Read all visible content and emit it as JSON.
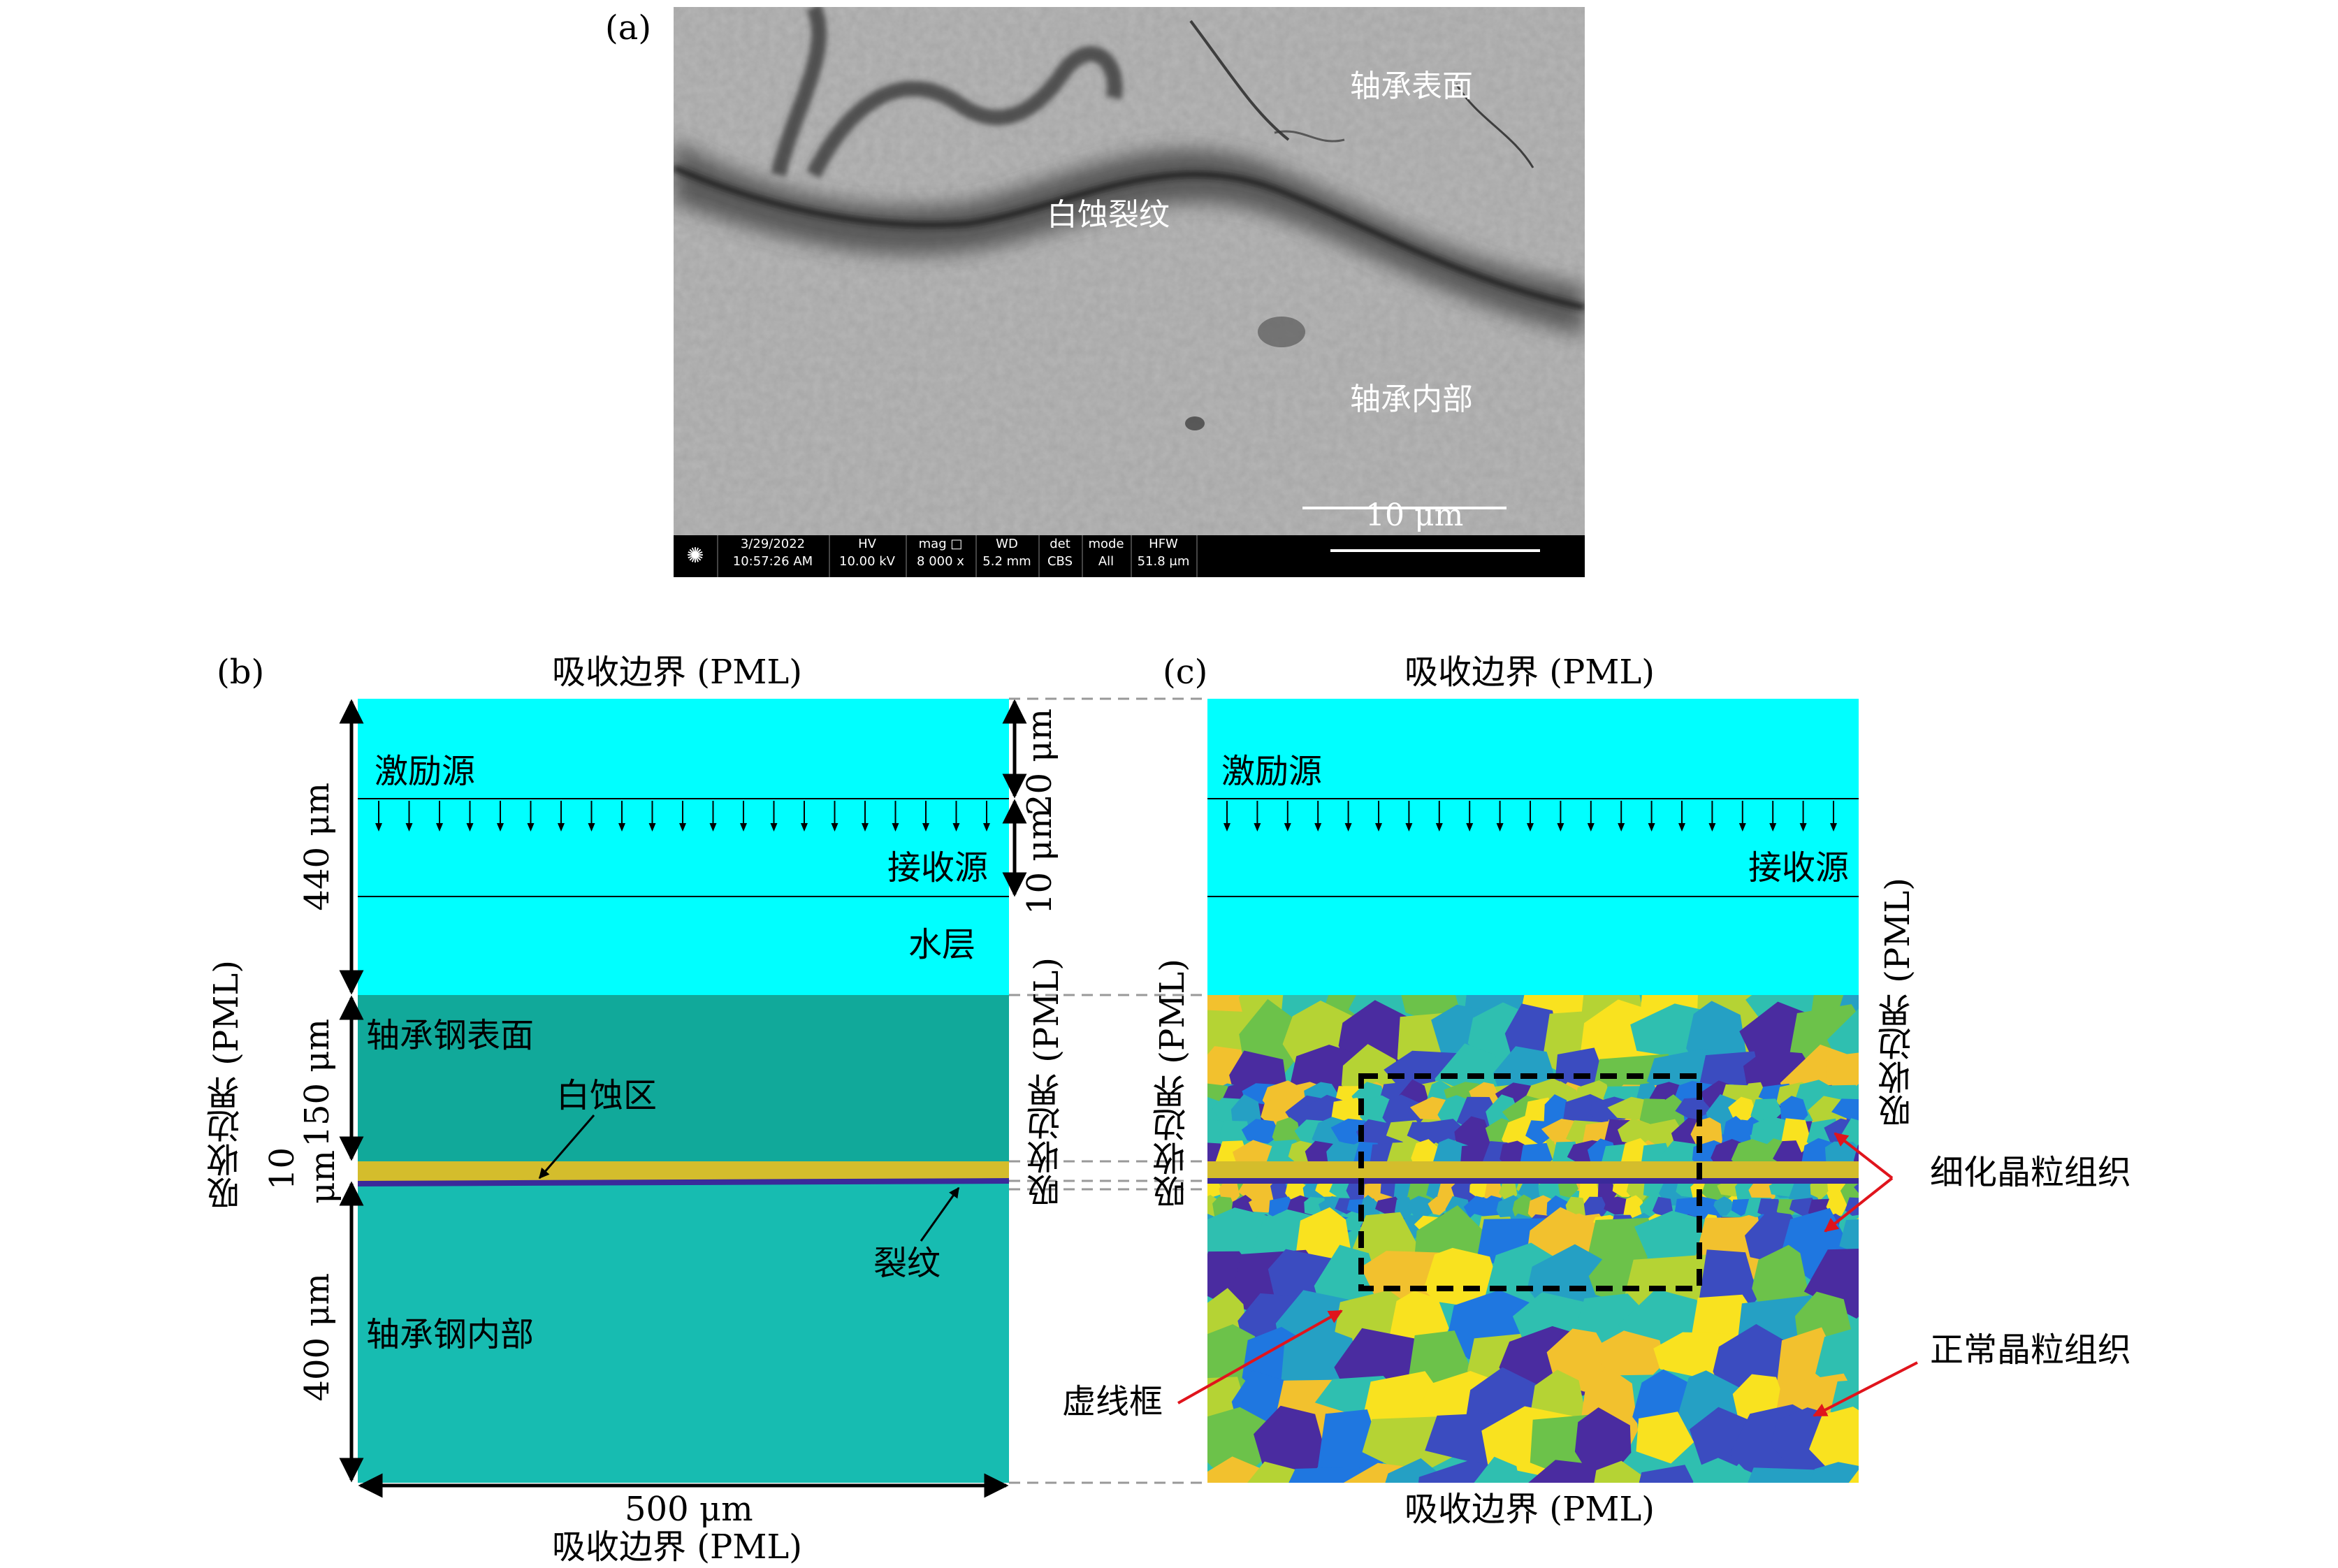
{
  "panel_a": {
    "label": "(a)",
    "texts": {
      "surface": "轴承表面",
      "crack": "白蚀裂纹",
      "interior": "轴承内部",
      "scale": "10 μm"
    },
    "info_bar": {
      "date": "3/29/2022",
      "time": "10:57:26 AM",
      "hv_h": "HV",
      "hv_v": "10.00 kV",
      "mag_h": "mag",
      "mag_v": "8 000 x",
      "wd_h": "WD",
      "wd_v": "5.2 mm",
      "det_h": "det",
      "det_v": "CBS",
      "mode_h": "mode",
      "mode_v": "All",
      "hfw_h": "HFW",
      "hfw_v": "51.8 μm"
    }
  },
  "panel_b": {
    "label": "(b)",
    "top_boundary": "吸收边界 (PML)",
    "bottom_boundary": "吸收边界 (PML)",
    "left_boundary": "吸收边界 (PML)",
    "right_boundary": "吸收边界 (PML)",
    "source": "激励源",
    "receiver": "接收源",
    "water": "水层",
    "surface": "轴承钢表面",
    "white_zone": "白蚀区",
    "crack": "裂纹",
    "interior": "轴承钢内部",
    "dims": {
      "d440": "440 μm",
      "d150": "150 μm",
      "d10": "10",
      "d10_unit": "μm",
      "d400": "400 μm",
      "d500": "500 μm",
      "d20": "20 μm",
      "d10r": "10 μm"
    }
  },
  "panel_c": {
    "label": "(c)",
    "top_boundary": "吸收边界 (PML)",
    "bottom_boundary": "吸收边界 (PML)",
    "left_boundary": "吸收边界 (PML)",
    "right_boundary": "吸收边界 (PML)",
    "source": "激励源",
    "receiver": "接收源",
    "refined": "细化晶粒组织",
    "normal": "正常晶粒组织",
    "dashed_box": "虚线框"
  },
  "colors": {
    "water": "#00ffff",
    "steel": "#17bcb1",
    "white_etch": "#d4bd2c",
    "crack": "#3a2a9a",
    "arrow_red": "#e0141c",
    "grains": [
      "#3b4cc0",
      "#1f77e0",
      "#2fbfb0",
      "#6cc24a",
      "#b5d334",
      "#f2c12e",
      "#f9e21f",
      "#25a0c4",
      "#4a2ca0"
    ]
  }
}
